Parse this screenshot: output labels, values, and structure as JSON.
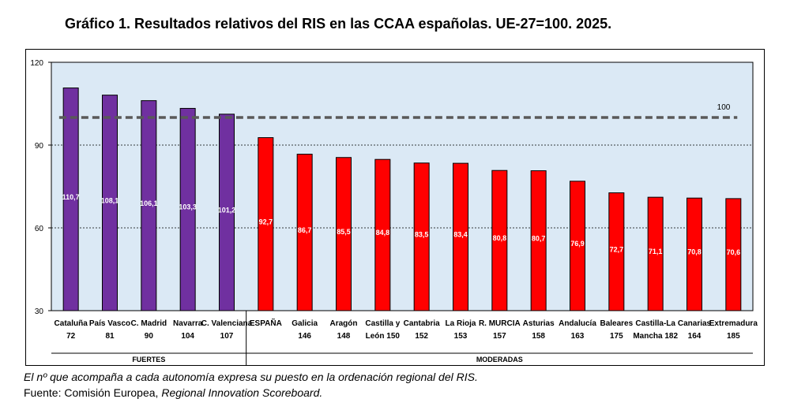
{
  "title": "Gráfico 1. Resultados relativos del RIS en las CCAA españolas. UE-27=100. 2025.",
  "chart_data": {
    "type": "bar",
    "ylim": [
      30,
      120
    ],
    "yticks": [
      30,
      60,
      90,
      120
    ],
    "grid": true,
    "reference": {
      "value": 100,
      "label": "100"
    },
    "colors": {
      "fuertes": "#7030a0",
      "moderadas": "#ff0000",
      "background": "#dbe9f5",
      "reference_line": "#595959"
    },
    "bars": [
      {
        "name": "Cataluña",
        "rank": "72",
        "value": 110.7,
        "label": "110,7",
        "group": "fuertes"
      },
      {
        "name": "País Vasco",
        "rank": "81",
        "value": 108.1,
        "label": "108,1",
        "group": "fuertes"
      },
      {
        "name": "C. Madrid",
        "rank": "90",
        "value": 106.1,
        "label": "106,1",
        "group": "fuertes"
      },
      {
        "name": "Navarra",
        "rank": "104",
        "value": 103.3,
        "label": "103,3",
        "group": "fuertes"
      },
      {
        "name": "C. Valenciana",
        "rank": "107",
        "value": 101.2,
        "label": "101,2",
        "group": "fuertes"
      },
      {
        "name": "ESPAÑA",
        "rank": "",
        "value": 92.7,
        "label": "92,7",
        "group": "moderadas"
      },
      {
        "name": "Galicia",
        "rank": "146",
        "value": 86.7,
        "label": "86,7",
        "group": "moderadas"
      },
      {
        "name": "Aragón",
        "rank": "148",
        "value": 85.5,
        "label": "85,5",
        "group": "moderadas"
      },
      {
        "name": "Castilla y",
        "rank": "León 150",
        "value": 84.8,
        "label": "84,8",
        "group": "moderadas"
      },
      {
        "name": "Cantabria",
        "rank": "152",
        "value": 83.5,
        "label": "83,5",
        "group": "moderadas"
      },
      {
        "name": "La Rioja",
        "rank": "153",
        "value": 83.4,
        "label": "83,4",
        "group": "moderadas"
      },
      {
        "name": "R. MURCIA",
        "rank": "157",
        "value": 80.8,
        "label": "80,8",
        "group": "moderadas"
      },
      {
        "name": "Asturias",
        "rank": "158",
        "value": 80.7,
        "label": "80,7",
        "group": "moderadas"
      },
      {
        "name": "Andalucía",
        "rank": "163",
        "value": 76.9,
        "label": "76,9",
        "group": "moderadas"
      },
      {
        "name": "Baleares",
        "rank": "175",
        "value": 72.7,
        "label": "72,7",
        "group": "moderadas"
      },
      {
        "name": "Castilla-La",
        "rank": "Mancha 182",
        "value": 71.1,
        "label": "71,1",
        "group": "moderadas"
      },
      {
        "name": "Canarias",
        "rank": "164",
        "value": 70.8,
        "label": "70,8",
        "group": "moderadas"
      },
      {
        "name": "Extremadura",
        "rank": "185",
        "value": 70.6,
        "label": "70,6",
        "group": "moderadas"
      }
    ],
    "groups": [
      {
        "key": "fuertes",
        "label": "FUERTES"
      },
      {
        "key": "moderadas",
        "label": "MODERADAS"
      }
    ]
  },
  "notes": {
    "line1": "El nº que acompaña a cada autonomía expresa su puesto en la ordenación regional del RIS.",
    "source_prefix": "Fuente: Comisión Europea, ",
    "source_italic": "Regional Innovation Scoreboard."
  }
}
